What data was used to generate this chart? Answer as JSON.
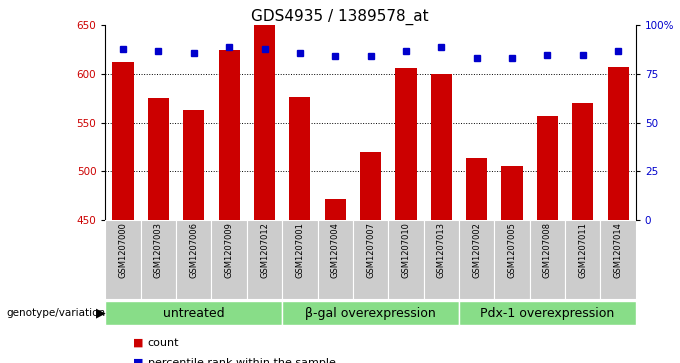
{
  "title": "GDS4935 / 1389578_at",
  "samples": [
    "GSM1207000",
    "GSM1207003",
    "GSM1207006",
    "GSM1207009",
    "GSM1207012",
    "GSM1207001",
    "GSM1207004",
    "GSM1207007",
    "GSM1207010",
    "GSM1207013",
    "GSM1207002",
    "GSM1207005",
    "GSM1207008",
    "GSM1207011",
    "GSM1207014"
  ],
  "counts": [
    612,
    575,
    563,
    625,
    650,
    576,
    471,
    520,
    606,
    600,
    513,
    505,
    557,
    570,
    607
  ],
  "percentile_ranks": [
    88,
    87,
    86,
    89,
    88,
    86,
    84,
    84,
    87,
    89,
    83,
    83,
    85,
    85,
    87
  ],
  "groups": [
    {
      "label": "untreated",
      "start": 0,
      "end": 5
    },
    {
      "label": "β-gal overexpression",
      "start": 5,
      "end": 10
    },
    {
      "label": "Pdx-1 overexpression",
      "start": 10,
      "end": 15
    }
  ],
  "ylim_left": [
    450,
    650
  ],
  "ylim_right": [
    0,
    100
  ],
  "yticks_left": [
    450,
    500,
    550,
    600,
    650
  ],
  "yticks_right": [
    0,
    25,
    50,
    75,
    100
  ],
  "bar_color": "#cc0000",
  "dot_color": "#0000cc",
  "grid_color": "#000000",
  "label_area_bg": "#cccccc",
  "group_bg": "#88dd88",
  "ylabel_left_color": "#cc0000",
  "ylabel_right_color": "#0000cc",
  "title_fontsize": 11,
  "legend_fontsize": 8,
  "sample_fontsize": 6,
  "group_fontsize": 9
}
